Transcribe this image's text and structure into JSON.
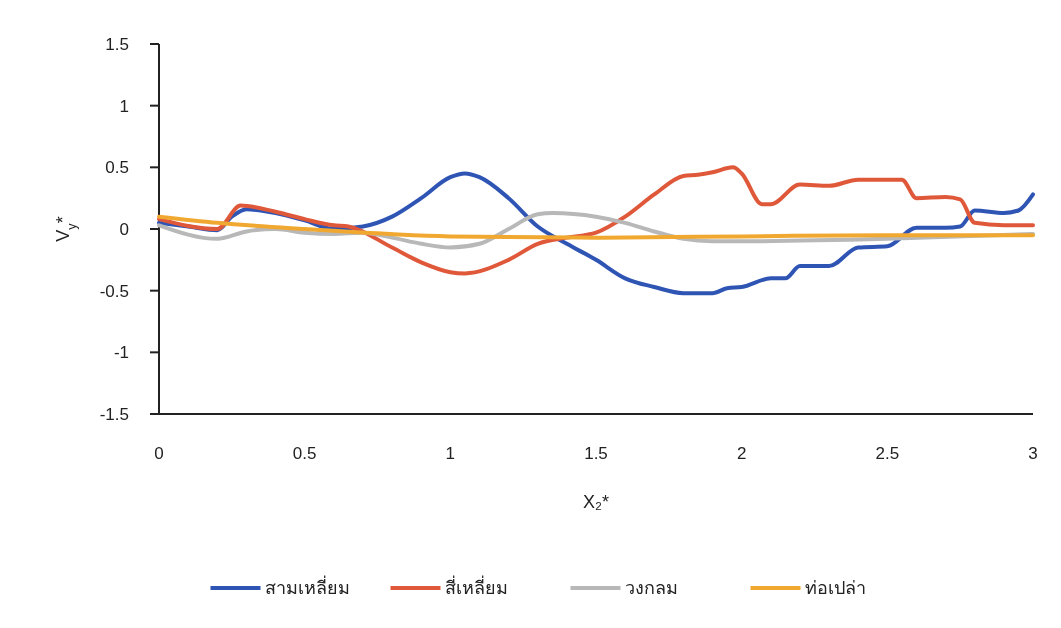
{
  "chart_data": {
    "type": "line",
    "xlabel": "X₂*",
    "ylabel": "V$_{y}$*",
    "xlim": [
      0,
      3
    ],
    "ylim": [
      -1.5,
      1.5
    ],
    "xticks": [
      0,
      0.5,
      1,
      1.5,
      2,
      2.5,
      3
    ],
    "yticks": [
      -1.5,
      -1,
      -0.5,
      0,
      0.5,
      1,
      1.5
    ],
    "grid": false,
    "legend": "bottom",
    "marker": "none",
    "line_style": "solid",
    "series": [
      {
        "name": "สามเหลี่ยม",
        "color": "#2e54b4",
        "x": [
          0,
          0.1,
          0.2,
          0.25,
          0.3,
          0.4,
          0.5,
          0.6,
          0.7,
          0.8,
          0.9,
          1.0,
          1.05,
          1.1,
          1.2,
          1.3,
          1.4,
          1.5,
          1.6,
          1.7,
          1.8,
          1.9,
          1.95,
          2.0,
          2.1,
          2.15,
          2.2,
          2.3,
          2.4,
          2.5,
          2.6,
          2.7,
          2.75,
          2.8,
          2.9,
          2.95,
          3.0
        ],
        "values": [
          0.05,
          0.02,
          -0.01,
          0.1,
          0.16,
          0.13,
          0.07,
          0.0,
          0.02,
          0.1,
          0.25,
          0.42,
          0.45,
          0.42,
          0.25,
          0.02,
          -0.12,
          -0.25,
          -0.4,
          -0.47,
          -0.52,
          -0.52,
          -0.48,
          -0.47,
          -0.4,
          -0.4,
          -0.3,
          -0.3,
          -0.15,
          -0.14,
          0.01,
          0.01,
          0.02,
          0.15,
          0.13,
          0.15,
          0.28
        ]
      },
      {
        "name": "สี่เหลี่ยม",
        "color": "#e0583a",
        "x": [
          0,
          0.2,
          0.28,
          0.4,
          0.5,
          0.6,
          0.65,
          0.8,
          0.9,
          1.0,
          1.05,
          1.2,
          1.3,
          1.4,
          1.5,
          1.6,
          1.7,
          1.8,
          1.85,
          1.9,
          1.97,
          2.0,
          2.07,
          2.1,
          2.2,
          2.3,
          2.4,
          2.5,
          2.55,
          2.6,
          2.7,
          2.75,
          2.8,
          2.9,
          3.0
        ],
        "values": [
          0.08,
          0.0,
          0.19,
          0.14,
          0.08,
          0.03,
          0.02,
          -0.15,
          -0.27,
          -0.35,
          -0.36,
          -0.25,
          -0.12,
          -0.07,
          -0.03,
          0.1,
          0.28,
          0.43,
          0.44,
          0.46,
          0.5,
          0.45,
          0.2,
          0.2,
          0.36,
          0.35,
          0.4,
          0.4,
          0.4,
          0.25,
          0.26,
          0.24,
          0.05,
          0.03,
          0.03
        ]
      },
      {
        "name": "วงกลม",
        "color": "#b8b8b8",
        "x": [
          0,
          0.2,
          0.3,
          0.4,
          0.5,
          0.6,
          0.7,
          0.8,
          0.9,
          1.0,
          1.1,
          1.2,
          1.3,
          1.35,
          1.5,
          1.6,
          1.7,
          1.8,
          1.9,
          2.0,
          2.5,
          3.0
        ],
        "values": [
          0.03,
          -0.08,
          -0.02,
          0.0,
          -0.03,
          -0.04,
          -0.03,
          -0.07,
          -0.12,
          -0.15,
          -0.12,
          0.0,
          0.12,
          0.13,
          0.1,
          0.05,
          -0.02,
          -0.08,
          -0.1,
          -0.1,
          -0.08,
          -0.04
        ]
      },
      {
        "name": "ท่อเปล่า",
        "color": "#f0a830",
        "x": [
          0,
          0.2,
          0.5,
          1.0,
          1.5,
          2.0,
          2.5,
          3.0
        ],
        "values": [
          0.1,
          0.05,
          0.0,
          -0.06,
          -0.07,
          -0.06,
          -0.05,
          -0.05
        ]
      }
    ]
  }
}
